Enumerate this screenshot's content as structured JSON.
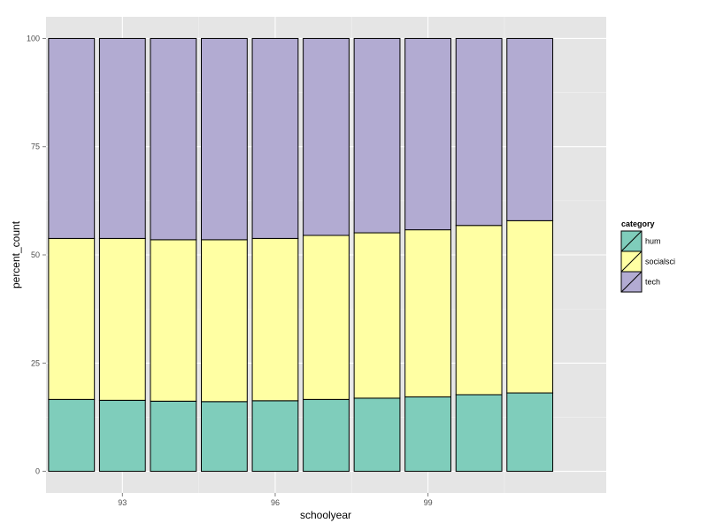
{
  "chart_data": {
    "type": "bar",
    "stacked": true,
    "x": [
      92,
      93,
      94,
      95,
      96,
      97,
      98,
      99,
      100,
      101
    ],
    "x_ticks": [
      93,
      96,
      99
    ],
    "x_tick_labels": [
      "93",
      "96",
      "99"
    ],
    "y_ticks": [
      0,
      25,
      50,
      75,
      100
    ],
    "y_tick_labels": [
      "0",
      "25",
      "50",
      "75",
      "100"
    ],
    "xlim": [
      91.5,
      102.5
    ],
    "ylim": [
      -5,
      105
    ],
    "xlabel": "schoolyear",
    "ylabel": "percent_count",
    "grid": true,
    "legend_position": "right",
    "legend_title": "category",
    "series": [
      {
        "name": "hum",
        "color": "#7fcdbb",
        "values": [
          16.6,
          16.4,
          16.2,
          16.1,
          16.3,
          16.6,
          16.9,
          17.2,
          17.7,
          18.1
        ]
      },
      {
        "name": "socialsci",
        "color": "#ffffa3",
        "values": [
          37.2,
          37.4,
          37.3,
          37.4,
          37.5,
          37.9,
          38.2,
          38.6,
          39.1,
          39.8
        ]
      },
      {
        "name": "tech",
        "color": "#b2abd2",
        "values": [
          46.2,
          46.2,
          46.5,
          46.5,
          46.2,
          45.5,
          44.9,
          44.2,
          43.2,
          42.1
        ]
      }
    ]
  }
}
